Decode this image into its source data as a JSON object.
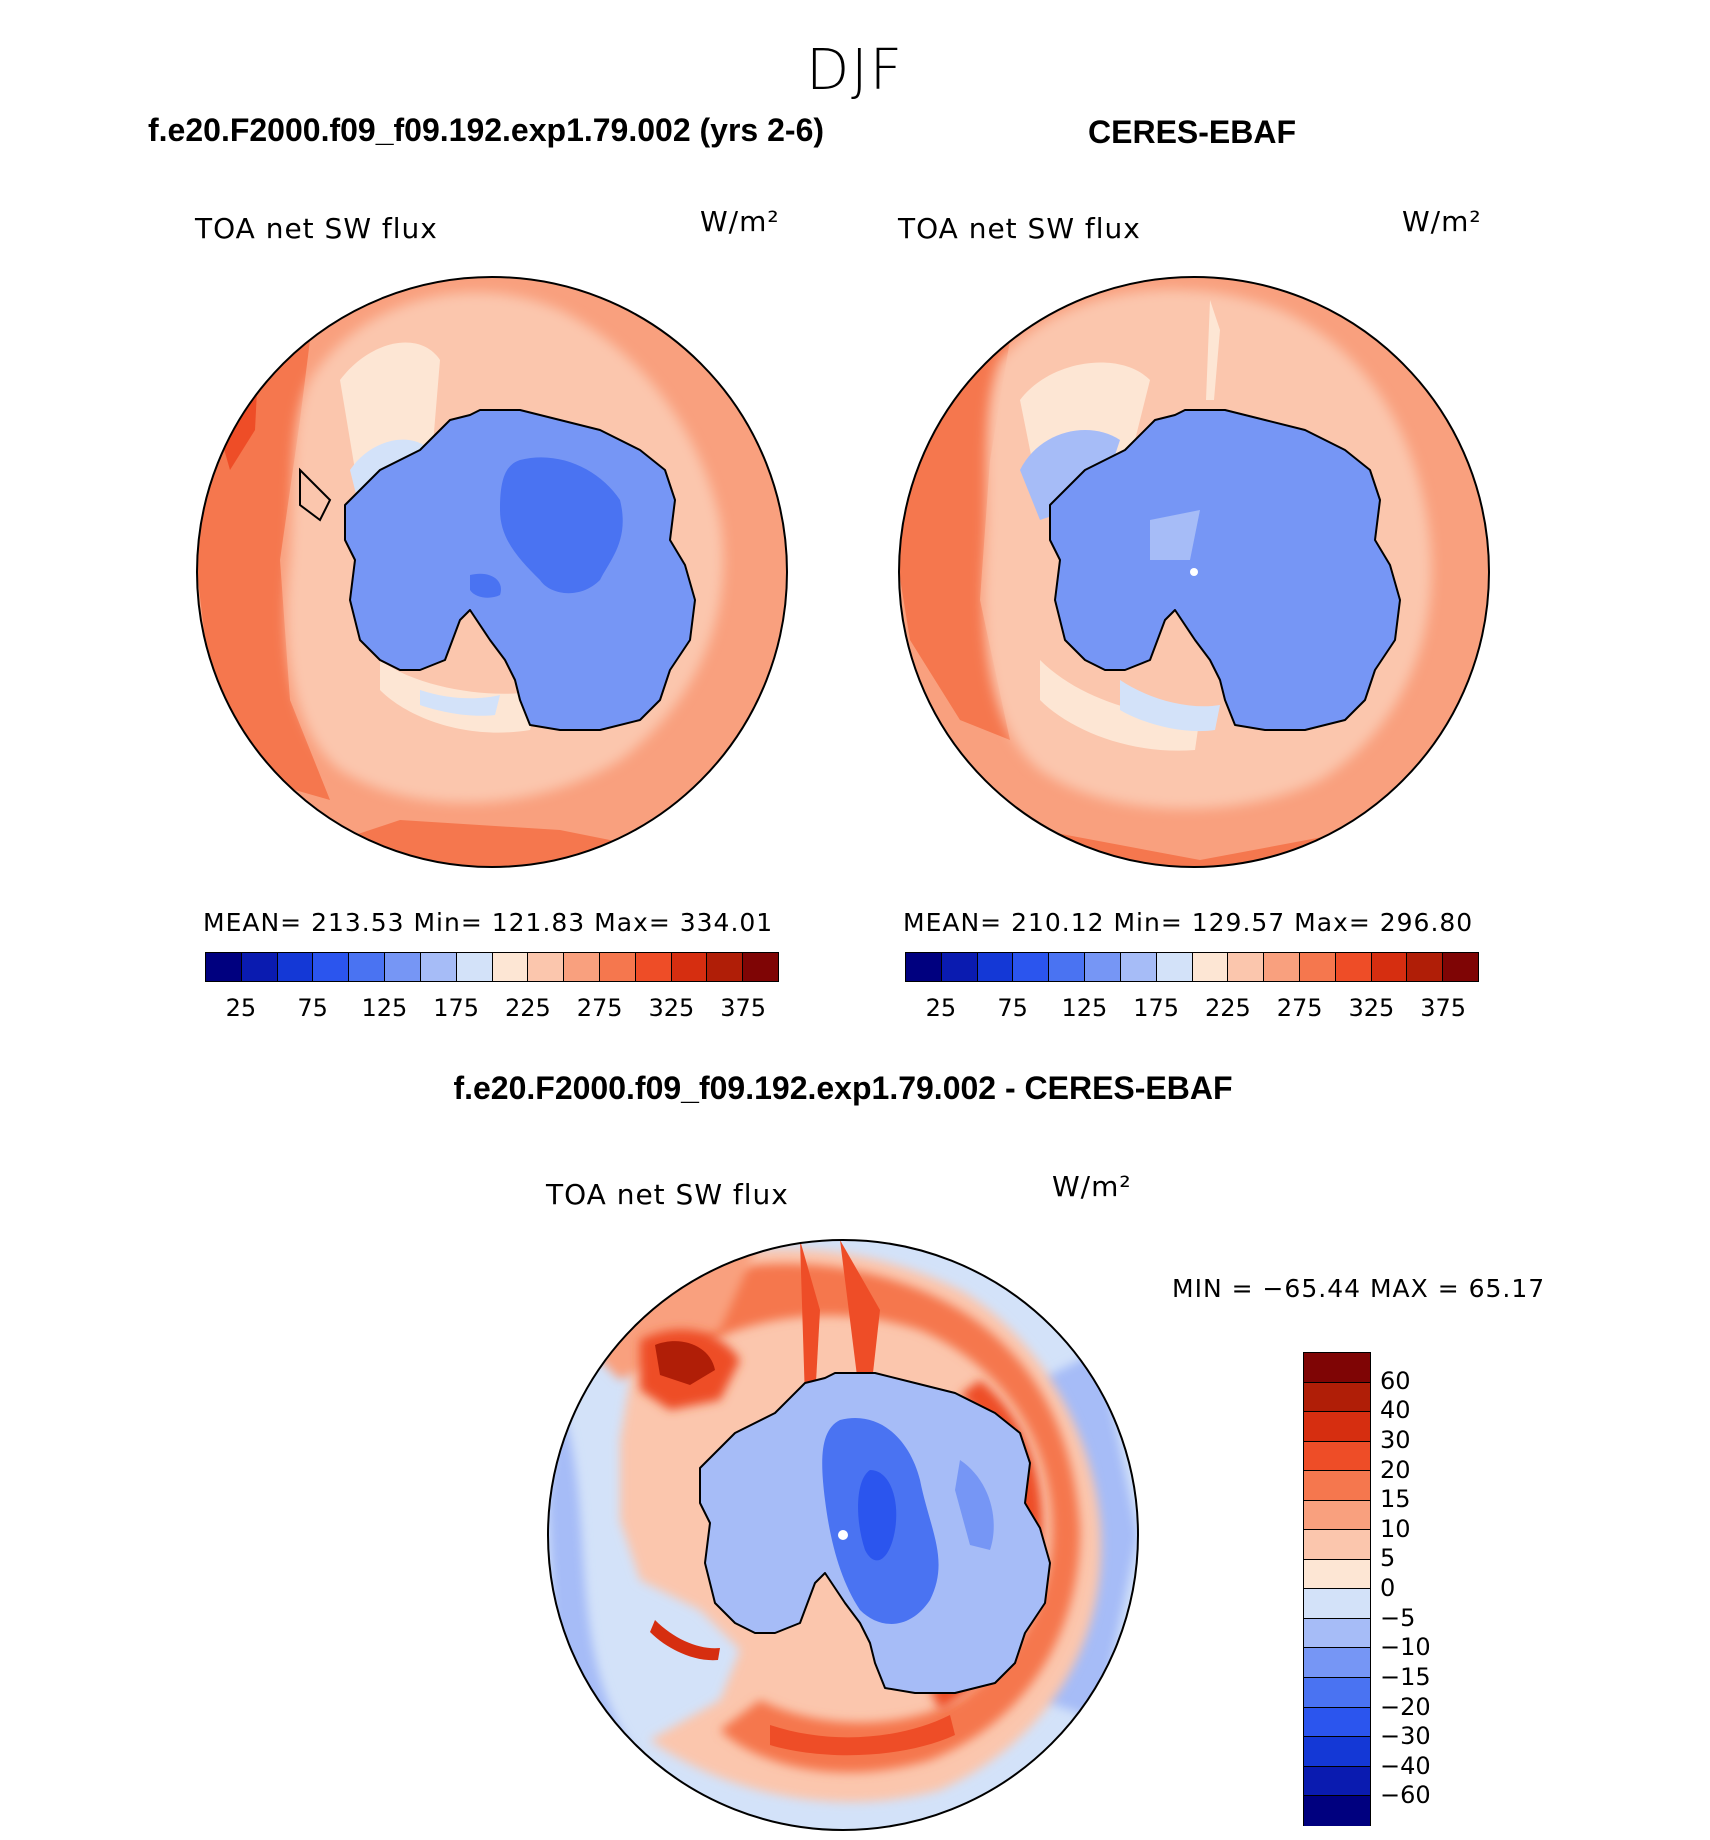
{
  "season": "DJF",
  "panels": [
    {
      "title": "f.e20.F2000.f09_f09.192.exp1.79.002 (yrs 2-6)",
      "variable": "TOA net SW flux",
      "units": "W/m²",
      "stats": "MEAN= 213.53   Min= 121.83   Max= 334.01"
    },
    {
      "title": "CERES-EBAF",
      "variable": "TOA net SW flux",
      "units": "W/m²",
      "stats": "MEAN= 210.12   Min= 129.57   Max= 296.80"
    }
  ],
  "diff": {
    "title": "f.e20.F2000.f09_f09.192.exp1.79.002 - CERES-EBAF",
    "variable": "TOA net SW flux",
    "units": "W/m²",
    "minmax": "MIN = −65.44 MAX =   65.17"
  },
  "colorbar_main": {
    "colors": [
      "#00007f",
      "#0a1bb0",
      "#1438d6",
      "#2b55ee",
      "#4a73f2",
      "#7696f5",
      "#a6bcf7",
      "#d3e2f9",
      "#fde6d4",
      "#fbc6ad",
      "#f9a07e",
      "#f5774e",
      "#ee4d27",
      "#d62e10",
      "#b01e07",
      "#7f0505"
    ],
    "tick_labels": [
      "25",
      "75",
      "125",
      "175",
      "225",
      "275",
      "325",
      "375"
    ]
  },
  "colorbar_diff": {
    "colors": [
      "#7f0505",
      "#b01e07",
      "#d62e10",
      "#ee4d27",
      "#f5774e",
      "#f9a07e",
      "#fbc6ad",
      "#fde6d4",
      "#d3e2f9",
      "#a6bcf7",
      "#7696f5",
      "#4a73f2",
      "#2b55ee",
      "#1438d6",
      "#0a1bb0",
      "#00007f"
    ],
    "tick_labels": [
      "60",
      "40",
      "30",
      "20",
      "15",
      "10",
      "5",
      "0",
      "−5",
      "−10",
      "−15",
      "−20",
      "−30",
      "−40",
      "−60"
    ]
  }
}
